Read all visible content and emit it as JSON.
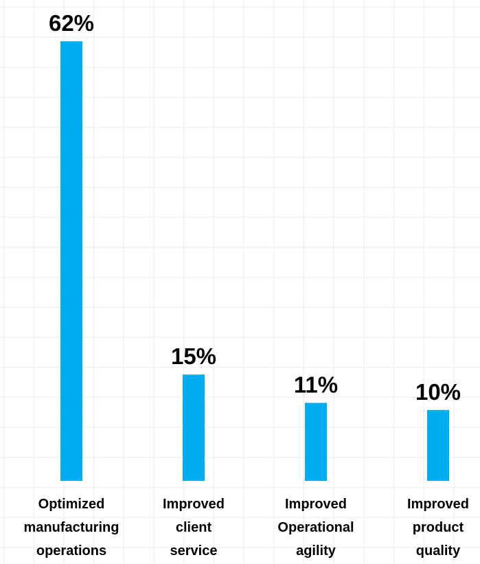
{
  "chart_data": {
    "type": "bar",
    "categories": [
      "Optimized manufacturing operations",
      "Improved client service",
      "Improved Operational agility",
      "Improved product quality"
    ],
    "category_lines": [
      [
        "Optimized",
        "manufacturing",
        "operations"
      ],
      [
        "Improved",
        "client",
        "service"
      ],
      [
        "Improved",
        "Operational",
        "agility"
      ],
      [
        "Improved",
        "product",
        "quality"
      ]
    ],
    "values": [
      62,
      15,
      11,
      10
    ],
    "value_labels": [
      "62%",
      "15%",
      "11%",
      "10%"
    ],
    "unit": "%",
    "bar_color": "#00AEEF",
    "grid": true,
    "legend": "none"
  }
}
